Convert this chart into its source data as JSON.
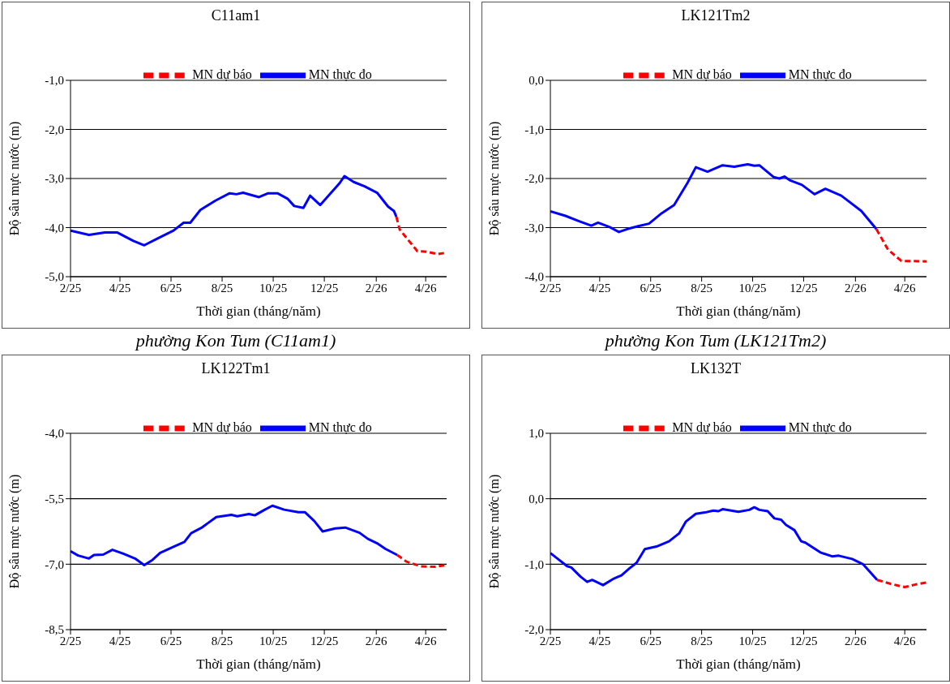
{
  "chart_data": [
    {
      "type": "line",
      "title": "C11am1",
      "xlabel": "Thời gian  (tháng/năm)",
      "ylabel": "Độ sâu mực nước (m)",
      "annotations": [
        "phường Kon Tum (C11am1)"
      ],
      "legend": "top",
      "grid": "y",
      "xlim": [
        "2025-02-01",
        "2026-04-26"
      ],
      "xticks": [
        {
          "value": "2025-02-01",
          "label": "2/25"
        },
        {
          "value": "2025-04-01",
          "label": "4/25"
        },
        {
          "value": "2025-06-01",
          "label": "6/25"
        },
        {
          "value": "2025-08-01",
          "label": "8/25"
        },
        {
          "value": "2025-10-01",
          "label": "10/25"
        },
        {
          "value": "2025-12-01",
          "label": "12/25"
        },
        {
          "value": "2026-02-01",
          "label": "2/26"
        },
        {
          "value": "2026-04-01",
          "label": "4/26"
        }
      ],
      "ylim": [
        -5,
        -1
      ],
      "yticks": [
        {
          "value": -1,
          "label": "-1,0"
        },
        {
          "value": -2,
          "label": "-2,0"
        },
        {
          "value": -3,
          "label": "-3,0"
        },
        {
          "value": -4,
          "label": "-4,0"
        },
        {
          "value": -5,
          "label": "-5,0"
        }
      ],
      "series": [
        {
          "name": "MN thực đo",
          "color": "#0000ff",
          "line_style": "solid",
          "x": [
            "2025-02-01",
            "2025-02-23",
            "2025-03-14",
            "2025-03-29",
            "2025-04-17",
            "2025-04-30",
            "2025-05-16",
            "2025-06-04",
            "2025-06-16",
            "2025-06-24",
            "2025-07-06",
            "2025-07-24",
            "2025-08-10",
            "2025-08-18",
            "2025-08-26",
            "2025-09-14",
            "2025-09-25",
            "2025-10-06",
            "2025-10-18",
            "2025-10-26",
            "2025-11-06",
            "2025-11-14",
            "2025-11-26",
            "2025-12-19",
            "2025-12-25",
            "2026-01-05",
            "2026-01-18",
            "2026-02-02",
            "2026-02-15",
            "2026-02-22",
            "2026-02-25"
          ],
          "values": [
            -4.06,
            -4.15,
            -4.1,
            -4.1,
            -4.27,
            -4.36,
            -4.22,
            -4.06,
            -3.9,
            -3.9,
            -3.64,
            -3.45,
            -3.3,
            -3.32,
            -3.29,
            -3.38,
            -3.3,
            -3.3,
            -3.41,
            -3.56,
            -3.6,
            -3.35,
            -3.54,
            -3.1,
            -2.95,
            -3.07,
            -3.16,
            -3.29,
            -3.57,
            -3.66,
            -3.78
          ]
        },
        {
          "name": "MN dự báo",
          "color": "#ff0000",
          "line_style": "dashed",
          "x": [
            "2026-02-25",
            "2026-03-01",
            "2026-03-22",
            "2026-04-02",
            "2026-04-15",
            "2026-04-26"
          ],
          "values": [
            -3.78,
            -4.04,
            -4.48,
            -4.49,
            -4.54,
            -4.51
          ]
        }
      ]
    },
    {
      "type": "line",
      "title": "LK121Tm2",
      "xlabel": "Thời gian  (tháng/năm)",
      "ylabel": "Độ sâu mực nước (m)",
      "annotations": [
        "phường Kon Tum (LK121Tm2)"
      ],
      "legend": "top",
      "grid": "y",
      "xlim": [
        "2025-02-01",
        "2026-04-27"
      ],
      "xticks": [
        {
          "value": "2025-02-01",
          "label": "2/25"
        },
        {
          "value": "2025-04-01",
          "label": "4/25"
        },
        {
          "value": "2025-06-01",
          "label": "6/25"
        },
        {
          "value": "2025-08-01",
          "label": "8/25"
        },
        {
          "value": "2025-10-01",
          "label": "10/25"
        },
        {
          "value": "2025-12-01",
          "label": "12/25"
        },
        {
          "value": "2026-02-01",
          "label": "2/26"
        },
        {
          "value": "2026-04-01",
          "label": "4/26"
        }
      ],
      "ylim": [
        -4,
        0
      ],
      "yticks": [
        {
          "value": 0,
          "label": "0,0"
        },
        {
          "value": -1,
          "label": "-1,0"
        },
        {
          "value": -2,
          "label": "-2,0"
        },
        {
          "value": -3,
          "label": "-3,0"
        },
        {
          "value": -4,
          "label": "-4,0"
        }
      ],
      "series": [
        {
          "name": "MN thực đo",
          "color": "#0000ff",
          "line_style": "solid",
          "x": [
            "2025-02-01",
            "2025-02-19",
            "2025-03-06",
            "2025-03-22",
            "2025-03-30",
            "2025-04-13",
            "2025-04-24",
            "2025-05-04",
            "2025-05-17",
            "2025-05-30",
            "2025-06-14",
            "2025-06-29",
            "2025-07-15",
            "2025-07-25",
            "2025-08-08",
            "2025-08-26",
            "2025-09-09",
            "2025-09-25",
            "2025-10-03",
            "2025-10-09",
            "2025-10-26",
            "2025-11-02",
            "2025-11-08",
            "2025-11-15",
            "2025-11-29",
            "2025-12-14",
            "2025-12-27",
            "2026-01-15",
            "2026-02-08",
            "2026-02-26"
          ],
          "values": [
            -2.67,
            -2.76,
            -2.86,
            -2.96,
            -2.9,
            -2.99,
            -3.09,
            -3.03,
            -2.97,
            -2.92,
            -2.71,
            -2.54,
            -2.09,
            -1.77,
            -1.86,
            -1.73,
            -1.76,
            -1.71,
            -1.74,
            -1.73,
            -1.97,
            -2.0,
            -1.96,
            -2.04,
            -2.13,
            -2.32,
            -2.21,
            -2.35,
            -2.66,
            -3.03
          ]
        },
        {
          "name": "MN dự báo",
          "color": "#ff0000",
          "line_style": "dashed",
          "x": [
            "2026-02-26",
            "2026-03-12",
            "2026-03-28",
            "2026-04-08",
            "2026-04-27"
          ],
          "values": [
            -3.03,
            -3.45,
            -3.68,
            -3.68,
            -3.69
          ]
        }
      ]
    },
    {
      "type": "line",
      "title": "LK122Tm1",
      "xlabel": "Thời gian  (tháng/năm)",
      "ylabel": "Độ sâu mực nước (m)",
      "legend": "top",
      "grid": "y",
      "xlim": [
        "2025-02-01",
        "2026-04-26"
      ],
      "xticks": [
        {
          "value": "2025-02-01",
          "label": "2/25"
        },
        {
          "value": "2025-04-01",
          "label": "4/25"
        },
        {
          "value": "2025-06-01",
          "label": "6/25"
        },
        {
          "value": "2025-08-01",
          "label": "8/25"
        },
        {
          "value": "2025-10-01",
          "label": "10/25"
        },
        {
          "value": "2025-12-01",
          "label": "12/25"
        },
        {
          "value": "2026-02-01",
          "label": "2/26"
        },
        {
          "value": "2026-04-01",
          "label": "4/26"
        }
      ],
      "ylim": [
        -8.5,
        -4
      ],
      "yticks": [
        {
          "value": -4,
          "label": "-4,0"
        },
        {
          "value": -5.5,
          "label": "-5,5"
        },
        {
          "value": -7,
          "label": "-7,0"
        },
        {
          "value": -8.5,
          "label": "-8,5"
        }
      ],
      "series": [
        {
          "name": "MN thực đo",
          "color": "#0000ff",
          "line_style": "solid",
          "x": [
            "2025-02-01",
            "2025-02-10",
            "2025-02-23",
            "2025-03-01",
            "2025-03-12",
            "2025-03-23",
            "2025-04-05",
            "2025-04-19",
            "2025-04-30",
            "2025-05-10",
            "2025-05-19",
            "2025-06-05",
            "2025-06-17",
            "2025-06-25",
            "2025-07-07",
            "2025-07-25",
            "2025-08-12",
            "2025-08-19",
            "2025-09-02",
            "2025-09-09",
            "2025-09-21",
            "2025-09-30",
            "2025-10-14",
            "2025-10-31",
            "2025-11-08",
            "2025-11-19",
            "2025-11-29",
            "2025-12-14",
            "2025-12-26",
            "2026-01-12",
            "2026-01-22",
            "2026-02-02",
            "2026-02-12",
            "2026-02-26"
          ],
          "values": [
            -6.7,
            -6.8,
            -6.87,
            -6.79,
            -6.78,
            -6.67,
            -6.76,
            -6.87,
            -7.02,
            -6.9,
            -6.74,
            -6.59,
            -6.49,
            -6.29,
            -6.17,
            -5.92,
            -5.87,
            -5.9,
            -5.85,
            -5.88,
            -5.75,
            -5.66,
            -5.75,
            -5.81,
            -5.81,
            -6.01,
            -6.25,
            -6.18,
            -6.16,
            -6.28,
            -6.42,
            -6.52,
            -6.65,
            -6.79
          ]
        },
        {
          "name": "MN dự báo",
          "color": "#ff0000",
          "line_style": "dashed",
          "x": [
            "2026-02-26",
            "2026-03-09",
            "2026-03-26",
            "2026-04-12",
            "2026-04-26"
          ],
          "values": [
            -6.79,
            -6.94,
            -7.05,
            -7.06,
            -7.02
          ]
        }
      ]
    },
    {
      "type": "line",
      "title": "LK132T",
      "xlabel": "Thời gian  (tháng/năm)",
      "ylabel": "Độ sâu mực nước (m)",
      "legend": "top",
      "grid": "y",
      "xlim": [
        "2025-02-01",
        "2026-04-27"
      ],
      "xticks": [
        {
          "value": "2025-02-01",
          "label": "2/25"
        },
        {
          "value": "2025-04-01",
          "label": "4/25"
        },
        {
          "value": "2025-06-01",
          "label": "6/25"
        },
        {
          "value": "2025-08-01",
          "label": "8/25"
        },
        {
          "value": "2025-10-01",
          "label": "10/25"
        },
        {
          "value": "2025-12-01",
          "label": "12/25"
        },
        {
          "value": "2026-02-01",
          "label": "2/26"
        },
        {
          "value": "2026-04-01",
          "label": "4/26"
        }
      ],
      "ylim": [
        -2,
        1
      ],
      "yticks": [
        {
          "value": 1,
          "label": "1,0"
        },
        {
          "value": 0,
          "label": "0,0"
        },
        {
          "value": -1,
          "label": "-1,0"
        },
        {
          "value": -2,
          "label": "-2,0"
        }
      ],
      "series": [
        {
          "name": "MN thực đo",
          "color": "#0000ff",
          "line_style": "solid",
          "x": [
            "2025-02-01",
            "2025-02-10",
            "2025-02-21",
            "2025-02-26",
            "2025-03-09",
            "2025-03-17",
            "2025-03-23",
            "2025-04-05",
            "2025-04-18",
            "2025-04-27",
            "2025-05-07",
            "2025-05-15",
            "2025-05-25",
            "2025-06-08",
            "2025-06-23",
            "2025-07-05",
            "2025-07-13",
            "2025-07-25",
            "2025-08-05",
            "2025-08-15",
            "2025-08-21",
            "2025-08-26",
            "2025-09-14",
            "2025-09-27",
            "2025-10-03",
            "2025-10-09",
            "2025-10-19",
            "2025-10-27",
            "2025-11-04",
            "2025-11-10",
            "2025-11-20",
            "2025-11-28",
            "2025-12-03",
            "2025-12-21",
            "2026-01-04",
            "2026-01-12",
            "2026-01-28",
            "2026-02-10",
            "2026-02-27"
          ],
          "values": [
            -0.83,
            -0.92,
            -1.03,
            -1.05,
            -1.19,
            -1.27,
            -1.24,
            -1.32,
            -1.22,
            -1.17,
            -1.06,
            -0.98,
            -0.77,
            -0.73,
            -0.65,
            -0.53,
            -0.35,
            -0.23,
            -0.21,
            -0.18,
            -0.19,
            -0.16,
            -0.2,
            -0.17,
            -0.13,
            -0.17,
            -0.19,
            -0.3,
            -0.32,
            -0.4,
            -0.48,
            -0.65,
            -0.67,
            -0.82,
            -0.88,
            -0.87,
            -0.92,
            -1.0,
            -1.24
          ]
        },
        {
          "name": "MN dự báo",
          "color": "#ff0000",
          "line_style": "dashed",
          "x": [
            "2026-02-27",
            "2026-03-15",
            "2026-04-01",
            "2026-04-14",
            "2026-04-27"
          ],
          "values": [
            -1.24,
            -1.3,
            -1.35,
            -1.31,
            -1.28
          ]
        }
      ]
    }
  ]
}
